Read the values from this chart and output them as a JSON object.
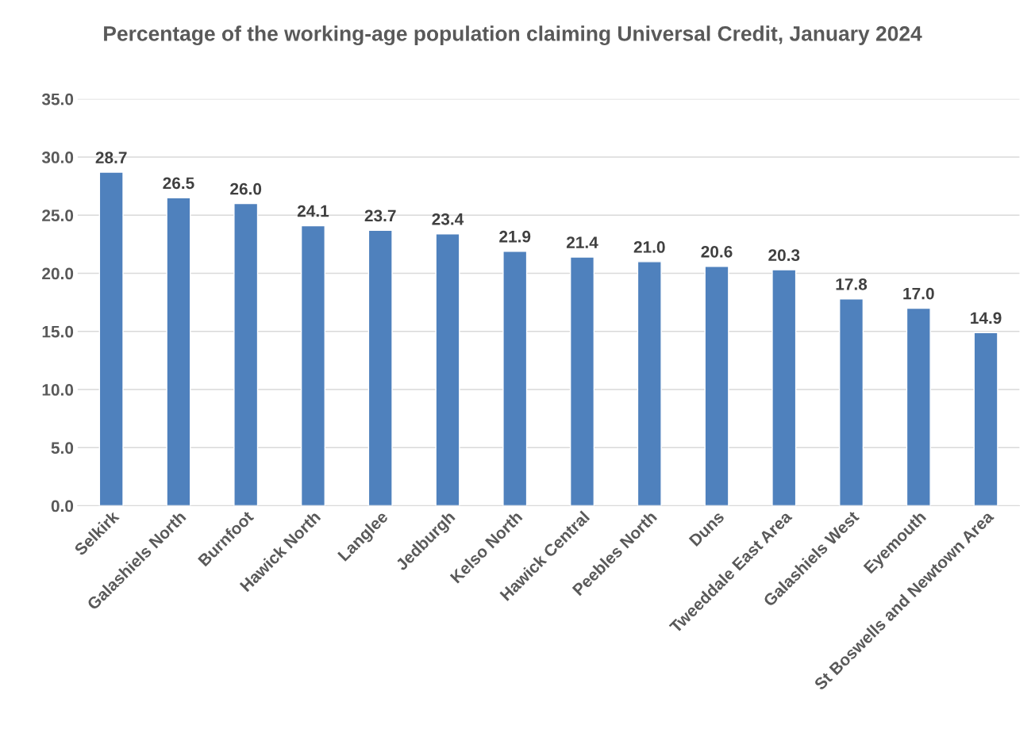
{
  "chart_data": {
    "type": "bar",
    "title": "Percentage of the working-age population claiming Universal Credit, January 2024",
    "categories": [
      "Selkirk",
      "Galashiels North",
      "Burnfoot",
      "Hawick North",
      "Langlee",
      "Jedburgh",
      "Kelso North",
      "Hawick Central",
      "Peebles North",
      "Duns",
      "Tweeddale East Area",
      "Galashiels West",
      "Eyemouth",
      "St Boswells and Newtown Area"
    ],
    "values": [
      28.7,
      26.5,
      26.0,
      24.1,
      23.7,
      23.4,
      21.9,
      21.4,
      21.0,
      20.6,
      20.3,
      17.8,
      17.0,
      14.9
    ],
    "color": "#4f81bd",
    "ylim": [
      0,
      35
    ],
    "yticks": [
      {
        "value": 0,
        "label": "0.0"
      },
      {
        "value": 5,
        "label": "5.0"
      },
      {
        "value": 10,
        "label": "10.0"
      },
      {
        "value": 15,
        "label": "15.0"
      },
      {
        "value": 20,
        "label": "20.0"
      },
      {
        "value": 25,
        "label": "25.0"
      },
      {
        "value": 30,
        "label": "30.0"
      },
      {
        "value": 35,
        "label": "35.0"
      }
    ],
    "grid": "y",
    "value_labels": [
      "28.7",
      "26.5",
      "26.0",
      "24.1",
      "23.7",
      "23.4",
      "21.9",
      "21.4",
      "21.0",
      "20.6",
      "20.3",
      "17.8",
      "17.0",
      "14.9"
    ]
  }
}
